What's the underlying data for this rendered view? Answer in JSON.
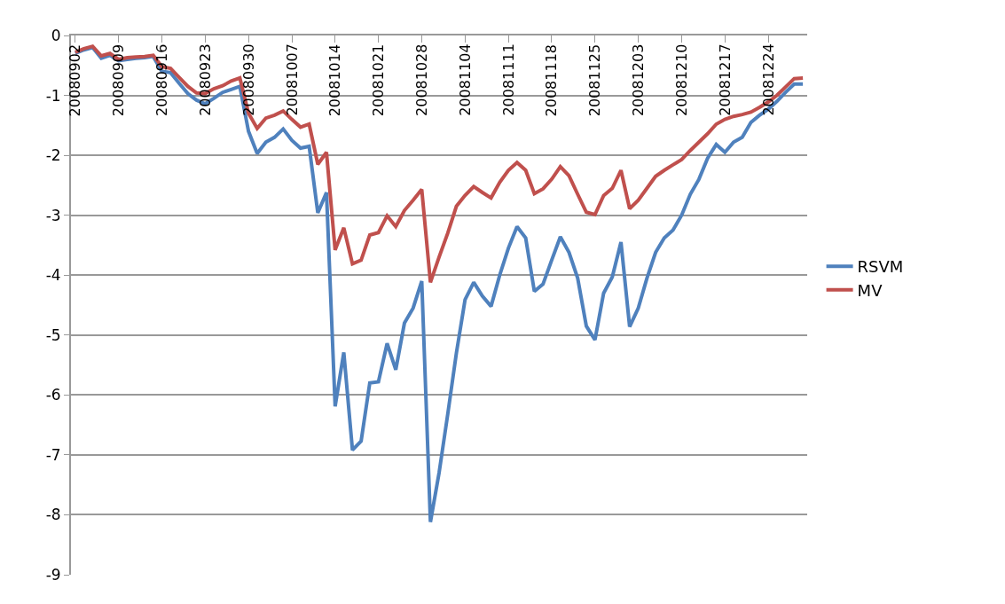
{
  "chart_data": {
    "type": "line",
    "categories": [
      "20080902",
      null,
      null,
      null,
      null,
      "20080909",
      null,
      null,
      null,
      null,
      "20080916",
      null,
      null,
      null,
      null,
      "20080923",
      null,
      null,
      null,
      null,
      "20080930",
      null,
      null,
      null,
      null,
      "20081007",
      null,
      null,
      null,
      null,
      "20081014",
      null,
      null,
      null,
      null,
      "20081021",
      null,
      null,
      null,
      null,
      "20081028",
      null,
      null,
      null,
      null,
      "20081104",
      null,
      null,
      null,
      null,
      "20081111",
      null,
      null,
      null,
      null,
      "20081118",
      null,
      null,
      null,
      null,
      "20081125",
      null,
      null,
      null,
      null,
      "20081203",
      null,
      null,
      null,
      null,
      "20081210",
      null,
      null,
      null,
      null,
      "20081217",
      null,
      null,
      null,
      null,
      "20081224",
      null,
      null,
      null,
      null
    ],
    "series": [
      {
        "name": "RSVM",
        "color": "#4f81bd",
        "values": [
          -0.3,
          -0.24,
          -0.2,
          -0.38,
          -0.33,
          -0.42,
          -0.4,
          -0.38,
          -0.37,
          -0.35,
          -0.6,
          -0.62,
          -0.8,
          -0.97,
          -1.08,
          -1.14,
          -1.05,
          -0.95,
          -0.9,
          -0.85,
          -1.6,
          -1.97,
          -1.78,
          -1.7,
          -1.56,
          -1.75,
          -1.88,
          -1.85,
          -2.96,
          -2.62,
          -6.19,
          -5.29,
          -6.92,
          -6.77,
          -5.8,
          -5.78,
          -5.14,
          -5.58,
          -4.8,
          -4.55,
          -4.1,
          -8.12,
          -7.3,
          -6.32,
          -5.3,
          -4.41,
          -4.12,
          -4.35,
          -4.52,
          -4.0,
          -3.55,
          -3.19,
          -3.38,
          -4.27,
          -4.15,
          -3.75,
          -3.36,
          -3.62,
          -4.05,
          -4.85,
          -5.08,
          -4.3,
          -4.03,
          -3.45,
          -4.86,
          -4.55,
          -4.05,
          -3.62,
          -3.38,
          -3.25,
          -3.0,
          -2.65,
          -2.4,
          -2.05,
          -1.82,
          -1.95,
          -1.78,
          -1.7,
          -1.45,
          -1.33,
          -1.23,
          -1.1,
          -0.95,
          -0.81,
          -0.81
        ]
      },
      {
        "name": "MV",
        "color": "#c0504d",
        "values": [
          -0.28,
          -0.22,
          -0.18,
          -0.34,
          -0.3,
          -0.4,
          -0.37,
          -0.36,
          -0.35,
          -0.33,
          -0.52,
          -0.55,
          -0.7,
          -0.85,
          -0.96,
          -0.97,
          -0.89,
          -0.84,
          -0.76,
          -0.71,
          -1.3,
          -1.55,
          -1.38,
          -1.33,
          -1.26,
          -1.4,
          -1.53,
          -1.48,
          -2.15,
          -1.95,
          -3.58,
          -3.21,
          -3.81,
          -3.75,
          -3.33,
          -3.29,
          -3.01,
          -3.19,
          -2.92,
          -2.75,
          -2.57,
          -4.12,
          -3.7,
          -3.3,
          -2.85,
          -2.67,
          -2.52,
          -2.62,
          -2.71,
          -2.45,
          -2.25,
          -2.12,
          -2.25,
          -2.64,
          -2.56,
          -2.4,
          -2.19,
          -2.34,
          -2.65,
          -2.95,
          -2.99,
          -2.67,
          -2.55,
          -2.25,
          -2.89,
          -2.75,
          -2.55,
          -2.35,
          -2.25,
          -2.16,
          -2.07,
          -1.92,
          -1.78,
          -1.64,
          -1.48,
          -1.4,
          -1.35,
          -1.32,
          -1.28,
          -1.2,
          -1.11,
          -1.0,
          -0.86,
          -0.72,
          -0.71
        ]
      }
    ],
    "ylim": [
      -9,
      0
    ],
    "yticks": [
      -9,
      -8,
      -7,
      -6,
      -5,
      -4,
      -3,
      -2,
      -1,
      0
    ],
    "grid": "y",
    "legend": "right",
    "line_style": "solid"
  }
}
